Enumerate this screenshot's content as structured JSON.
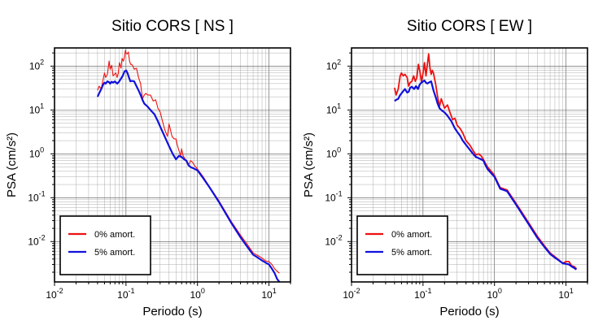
{
  "chart_data": [
    {
      "type": "line",
      "title": "Sitio CORS [ NS ]",
      "xlabel": "Periodo (s)",
      "ylabel": "PSA (cm/s²)",
      "xscale": "log",
      "yscale": "log",
      "xlim": [
        0.01,
        20
      ],
      "ylim": [
        0.0012,
        260
      ],
      "grid": true,
      "legend_position": "bottom-left",
      "series": [
        {
          "name": "0% amort.",
          "color": "#ee1111",
          "x": [
            0.04,
            0.042,
            0.045,
            0.048,
            0.05,
            0.052,
            0.055,
            0.058,
            0.06,
            0.063,
            0.066,
            0.069,
            0.072,
            0.075,
            0.078,
            0.081,
            0.085,
            0.088,
            0.092,
            0.095,
            0.098,
            0.1,
            0.104,
            0.108,
            0.112,
            0.116,
            0.12,
            0.125,
            0.13,
            0.14,
            0.15,
            0.16,
            0.17,
            0.18,
            0.19,
            0.2,
            0.22,
            0.24,
            0.26,
            0.28,
            0.3,
            0.32,
            0.35,
            0.38,
            0.4,
            0.42,
            0.44,
            0.47,
            0.5,
            0.52,
            0.55,
            0.58,
            0.6,
            0.63,
            0.66,
            0.7,
            0.75,
            0.8,
            0.85,
            0.9,
            0.95,
            1.0,
            1.2,
            1.5,
            2.0,
            3.0,
            4.0,
            5.0,
            6.0,
            7.0,
            8.0,
            9.0,
            10.0,
            11.0,
            12.0,
            13.0,
            14.0
          ],
          "y": [
            28,
            35,
            30,
            50,
            70,
            55,
            65,
            130,
            85,
            105,
            60,
            65,
            70,
            55,
            70,
            120,
            90,
            150,
            130,
            160,
            230,
            200,
            190,
            210,
            130,
            110,
            110,
            100,
            85,
            90,
            55,
            40,
            18,
            22,
            24,
            22,
            22,
            16,
            17,
            11,
            9,
            6,
            3.5,
            2.5,
            4.8,
            3.5,
            2.5,
            2.2,
            2.2,
            1.6,
            1.2,
            0.9,
            1.3,
            0.9,
            0.8,
            0.65,
            0.55,
            0.7,
            0.65,
            0.55,
            0.5,
            0.45,
            0.3,
            0.17,
            0.085,
            0.028,
            0.014,
            0.0085,
            0.0055,
            0.0048,
            0.0042,
            0.0036,
            0.0035,
            0.003,
            0.0024,
            0.0021,
            0.0019
          ]
        },
        {
          "name": "5% amort.",
          "color": "#1111dd",
          "x": [
            0.04,
            0.042,
            0.045,
            0.048,
            0.05,
            0.052,
            0.055,
            0.058,
            0.06,
            0.063,
            0.066,
            0.07,
            0.075,
            0.08,
            0.085,
            0.09,
            0.095,
            0.1,
            0.105,
            0.11,
            0.115,
            0.12,
            0.13,
            0.14,
            0.15,
            0.16,
            0.17,
            0.18,
            0.2,
            0.22,
            0.25,
            0.28,
            0.3,
            0.33,
            0.36,
            0.4,
            0.45,
            0.5,
            0.55,
            0.6,
            0.65,
            0.7,
            0.75,
            0.8,
            0.9,
            1.0,
            1.2,
            1.5,
            2.0,
            3.0,
            4.0,
            5.0,
            6.0,
            7.0,
            8.0,
            9.0,
            10.0,
            11.0,
            12.0,
            13.0,
            14.0
          ],
          "y": [
            20,
            24,
            30,
            38,
            42,
            40,
            45,
            43,
            40,
            44,
            42,
            45,
            40,
            44,
            52,
            60,
            75,
            80,
            70,
            55,
            45,
            46,
            45,
            35,
            28,
            22,
            17,
            14,
            12,
            10,
            8,
            5.5,
            4.2,
            3.0,
            2.2,
            1.5,
            1.0,
            0.75,
            0.9,
            0.85,
            0.75,
            0.7,
            0.55,
            0.5,
            0.46,
            0.42,
            0.28,
            0.165,
            0.08,
            0.026,
            0.0125,
            0.0075,
            0.005,
            0.0043,
            0.0037,
            0.0033,
            0.003,
            0.0024,
            0.0019,
            0.0014,
            0.0012
          ]
        }
      ]
    },
    {
      "type": "line",
      "title": "Sitio CORS [ EW ]",
      "xlabel": "Periodo (s)",
      "ylabel": "PSA (cm/s²)",
      "xscale": "log",
      "yscale": "log",
      "xlim": [
        0.01,
        20
      ],
      "ylim": [
        0.0012,
        260
      ],
      "grid": true,
      "legend_position": "bottom-left",
      "series": [
        {
          "name": "0% amort.",
          "color": "#ee1111",
          "x": [
            0.04,
            0.042,
            0.045,
            0.048,
            0.05,
            0.053,
            0.056,
            0.06,
            0.063,
            0.066,
            0.07,
            0.074,
            0.078,
            0.082,
            0.086,
            0.09,
            0.095,
            0.1,
            0.105,
            0.11,
            0.115,
            0.12,
            0.125,
            0.13,
            0.135,
            0.14,
            0.15,
            0.16,
            0.17,
            0.18,
            0.19,
            0.2,
            0.22,
            0.24,
            0.26,
            0.28,
            0.3,
            0.33,
            0.36,
            0.4,
            0.45,
            0.5,
            0.55,
            0.6,
            0.65,
            0.7,
            0.75,
            0.8,
            0.9,
            1.0,
            1.2,
            1.5,
            2.0,
            3.0,
            4.0,
            5.0,
            6.0,
            7.0,
            8.0,
            9.0,
            10.0,
            11.0,
            12.0,
            13.0,
            14.0
          ],
          "y": [
            32,
            22,
            30,
            60,
            70,
            60,
            65,
            55,
            35,
            42,
            45,
            60,
            45,
            55,
            110,
            80,
            45,
            70,
            120,
            60,
            110,
            190,
            90,
            65,
            80,
            70,
            40,
            20,
            12,
            18,
            14,
            11,
            13,
            8.5,
            6,
            6.5,
            4.5,
            3.8,
            3.0,
            2.0,
            1.6,
            1.2,
            0.95,
            1.0,
            0.9,
            0.75,
            0.6,
            0.5,
            0.4,
            0.32,
            0.17,
            0.15,
            0.075,
            0.027,
            0.013,
            0.008,
            0.0055,
            0.0045,
            0.0038,
            0.0032,
            0.0035,
            0.0035,
            0.0028,
            0.0027,
            0.0024
          ]
        },
        {
          "name": "5% amort.",
          "color": "#1111dd",
          "x": [
            0.04,
            0.042,
            0.045,
            0.048,
            0.05,
            0.053,
            0.056,
            0.06,
            0.063,
            0.066,
            0.07,
            0.075,
            0.08,
            0.085,
            0.09,
            0.095,
            0.1,
            0.105,
            0.11,
            0.115,
            0.12,
            0.13,
            0.14,
            0.15,
            0.16,
            0.17,
            0.18,
            0.2,
            0.22,
            0.25,
            0.28,
            0.3,
            0.33,
            0.36,
            0.4,
            0.45,
            0.5,
            0.55,
            0.6,
            0.65,
            0.7,
            0.75,
            0.8,
            0.9,
            1.0,
            1.2,
            1.5,
            2.0,
            3.0,
            4.0,
            5.0,
            6.0,
            7.0,
            8.0,
            9.0,
            10.0,
            11.0,
            12.0,
            13.0,
            14.0
          ],
          "y": [
            16,
            17,
            18,
            22,
            24,
            27,
            30,
            25,
            26,
            32,
            34,
            30,
            35,
            30,
            38,
            42,
            45,
            47,
            42,
            40,
            42,
            45,
            28,
            20,
            14,
            11,
            10,
            8.8,
            7.4,
            5.5,
            3.8,
            3.2,
            2.6,
            2.0,
            1.6,
            1.25,
            1.0,
            0.85,
            0.8,
            0.75,
            0.7,
            0.55,
            0.45,
            0.36,
            0.3,
            0.16,
            0.14,
            0.07,
            0.025,
            0.012,
            0.0075,
            0.0052,
            0.0043,
            0.0037,
            0.0032,
            0.0031,
            0.003,
            0.0027,
            0.0025,
            0.0023
          ]
        }
      ]
    }
  ]
}
